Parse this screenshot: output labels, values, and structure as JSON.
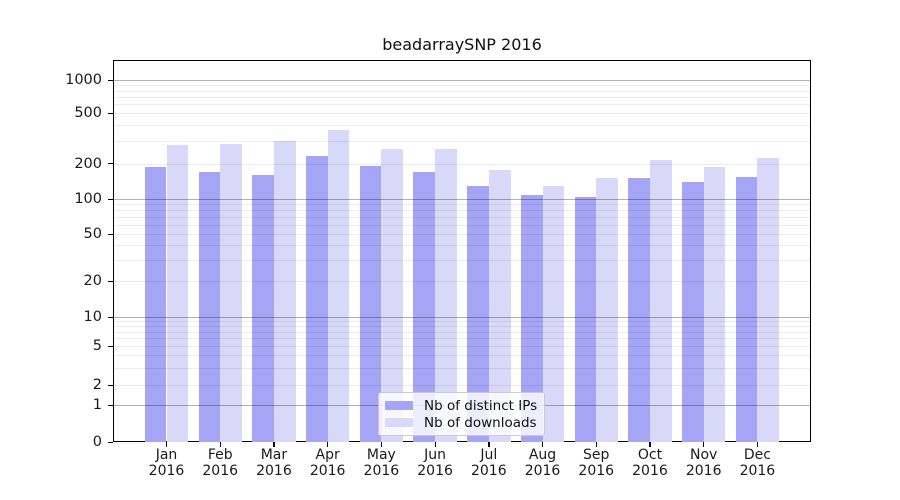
{
  "title": "beadarraySNP 2016",
  "chart_data": {
    "type": "bar",
    "title": "beadarraySNP 2016",
    "yscale": "log (with 0 baseline)",
    "grid": "on (dark lines at powers of 10, light minor lines at 2-9 multiples)",
    "legend_position": "bottom-center inside plot",
    "categories": [
      "Jan 2016",
      "Feb 2016",
      "Mar 2016",
      "Apr 2016",
      "May 2016",
      "Jun 2016",
      "Jul 2016",
      "Aug 2016",
      "Sep 2016",
      "Oct 2016",
      "Nov 2016",
      "Dec 2016"
    ],
    "x_tick_line1": [
      "Jan",
      "Feb",
      "Mar",
      "Apr",
      "May",
      "Jun",
      "Jul",
      "Aug",
      "Sep",
      "Oct",
      "Nov",
      "Dec"
    ],
    "x_tick_line2": [
      "2016",
      "2016",
      "2016",
      "2016",
      "2016",
      "2016",
      "2016",
      "2016",
      "2016",
      "2016",
      "2016",
      "2016"
    ],
    "yticks": [
      0,
      1,
      2,
      5,
      10,
      20,
      50,
      100,
      200,
      500,
      1000
    ],
    "ylim": [
      0,
      1450
    ],
    "series": [
      {
        "name": "Nb of distinct IPs",
        "color": "#a5a5f5",
        "values": [
          185,
          170,
          160,
          230,
          190,
          170,
          130,
          108,
          104,
          150,
          140,
          153
        ]
      },
      {
        "name": "Nb of downloads",
        "color": "#d8d8f9",
        "values": [
          280,
          285,
          300,
          370,
          260,
          260,
          175,
          130,
          150,
          215,
          185,
          220
        ]
      }
    ]
  },
  "colors": {
    "background": "#ffffff",
    "spine": "#000000",
    "major_grid": "#b3b3b3",
    "minor_grid": "#ececec",
    "bar_distinct_ips": "#a5a5f5",
    "bar_downloads": "#d8d8f9"
  }
}
